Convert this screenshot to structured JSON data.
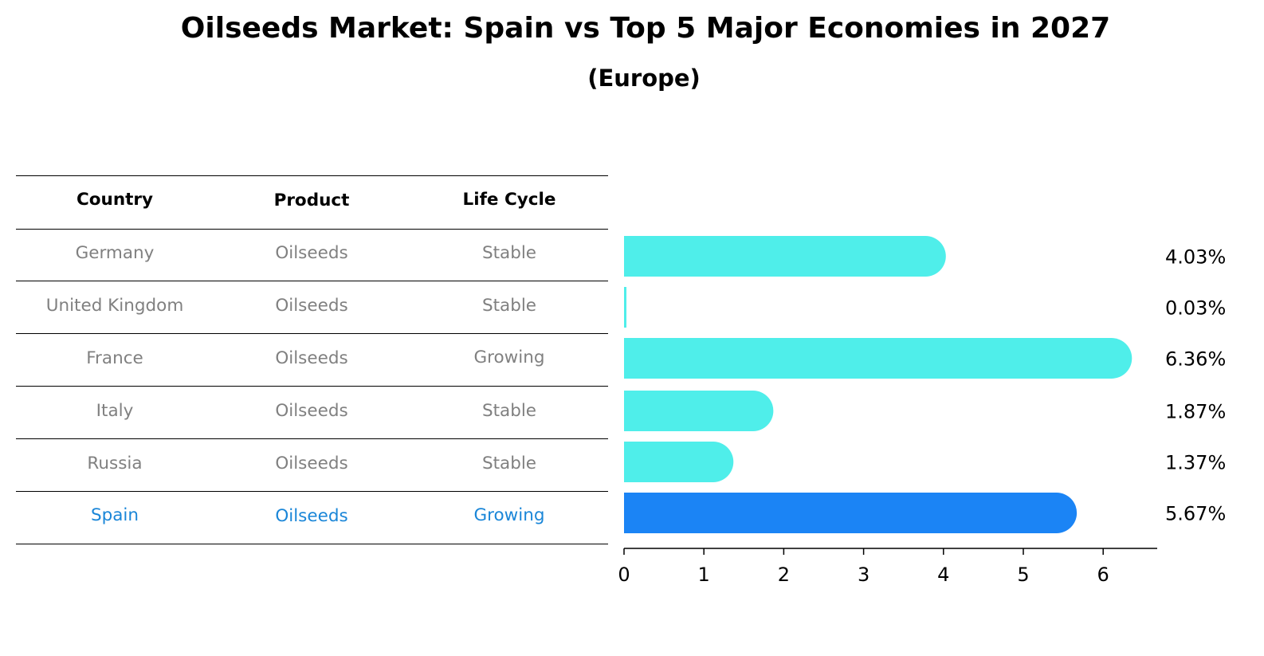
{
  "title": "Oilseeds Market: Spain vs Top 5 Major Economies in 2027",
  "subtitle": "(Europe)",
  "table": {
    "headers": [
      "Country",
      "Product",
      "Life Cycle"
    ],
    "rows": [
      [
        "Germany",
        "Oilseeds",
        "Stable"
      ],
      [
        "United Kingdom",
        "Oilseeds",
        "Stable"
      ],
      [
        "France",
        "Oilseeds",
        "Growing"
      ],
      [
        "Italy",
        "Oilseeds",
        "Stable"
      ],
      [
        "Russia",
        "Oilseeds",
        "Stable"
      ],
      [
        "Spain",
        "Oilseeds",
        "Growing"
      ]
    ],
    "highlight_row": 5
  },
  "colors": {
    "bar": "#4feeea",
    "highlight_bar": "#1b84f5",
    "highlight_text": "#1a86d8",
    "row_text": "#808080"
  },
  "chart_data": {
    "type": "bar",
    "orientation": "horizontal",
    "categories": [
      "Germany",
      "United Kingdom",
      "France",
      "Italy",
      "Russia",
      "Spain"
    ],
    "values": [
      4.03,
      0.03,
      6.36,
      1.87,
      1.37,
      5.67
    ],
    "value_labels": [
      "4.03%",
      "0.03%",
      "6.36%",
      "1.87%",
      "1.37%",
      "5.67%"
    ],
    "highlight": "Spain",
    "x_ticks": [
      "0",
      "1",
      "2",
      "3",
      "4",
      "5",
      "6"
    ],
    "xlim": [
      0,
      6.68
    ],
    "grid": false
  }
}
